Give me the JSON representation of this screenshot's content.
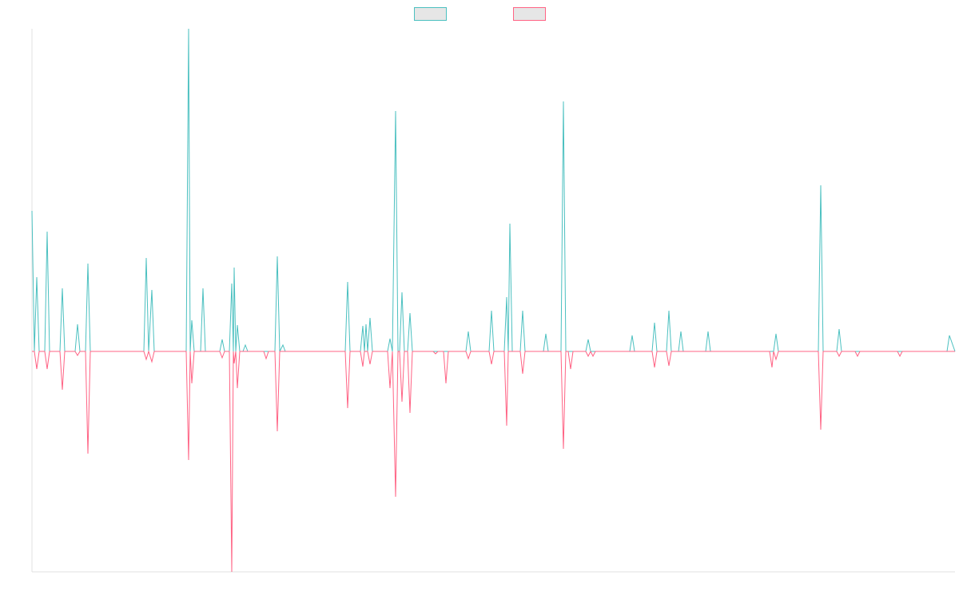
{
  "chart_data": {
    "type": "line",
    "x": [
      40,
      43,
      46,
      49,
      56,
      59,
      62,
      75,
      78,
      81,
      94,
      97,
      100,
      107,
      110,
      113,
      180,
      183,
      186,
      190,
      193,
      233,
      236,
      238,
      240,
      243,
      251,
      254,
      257,
      275,
      278,
      281,
      287,
      290,
      292,
      293,
      295,
      297,
      300,
      304,
      307,
      310,
      330,
      333,
      336,
      344,
      347,
      350,
      354,
      357,
      432,
      435,
      438,
      451,
      454,
      456,
      458,
      460,
      463,
      466,
      485,
      488,
      491,
      495,
      498,
      500,
      503,
      506,
      510,
      513,
      516,
      542,
      545,
      548,
      555,
      558,
      561,
      583,
      586,
      589,
      612,
      615,
      618,
      631,
      634,
      636,
      638,
      641,
      651,
      654,
      657,
      680,
      683,
      686,
      702,
      705,
      708,
      711,
      714,
      717,
      733,
      736,
      739,
      742,
      745,
      788,
      791,
      794,
      816,
      819,
      822,
      834,
      837,
      840,
      849,
      852,
      855,
      883,
      886,
      889,
      963,
      966,
      968,
      971,
      974,
      1024,
      1027,
      1030,
      1047,
      1050,
      1053,
      1070,
      1073,
      1076,
      1123,
      1126,
      1129,
      1185,
      1188,
      1195
    ],
    "series": [
      {
        "color": "#4bc0c0",
        "values": [
          176,
          0,
          93,
          0,
          0,
          150,
          0,
          0,
          79,
          0,
          0,
          34,
          0,
          0,
          110,
          0,
          0,
          117,
          0,
          77,
          0,
          0,
          404,
          0,
          39,
          0,
          0,
          79,
          0,
          0,
          15,
          0,
          0,
          85,
          0,
          105,
          0,
          33,
          0,
          0,
          8,
          0,
          0,
          0,
          0,
          0,
          119,
          0,
          8,
          0,
          0,
          87,
          0,
          0,
          32,
          0,
          34,
          0,
          42,
          0,
          0,
          16,
          0,
          301,
          0,
          0,
          74,
          0,
          0,
          48,
          0,
          0,
          0,
          0,
          0,
          0,
          0,
          0,
          25,
          0,
          0,
          51,
          0,
          0,
          68,
          0,
          160,
          0,
          0,
          51,
          0,
          0,
          22,
          0,
          0,
          313,
          0,
          0,
          0,
          0,
          0,
          15,
          0,
          0,
          0,
          0,
          20,
          0,
          0,
          36,
          0,
          0,
          51,
          0,
          0,
          25,
          0,
          0,
          25,
          0,
          0,
          0,
          0,
          22,
          0,
          0,
          208,
          0,
          0,
          28,
          0,
          0,
          0,
          0,
          0,
          0,
          0,
          0,
          20,
          0
        ]
      },
      {
        "color": "#ff6384",
        "values": [
          0,
          0,
          -22,
          0,
          0,
          -22,
          0,
          0,
          -48,
          0,
          0,
          -5,
          0,
          0,
          -128,
          0,
          0,
          -10,
          0,
          -13,
          0,
          0,
          -136,
          0,
          -40,
          0,
          0,
          0,
          0,
          0,
          -8,
          0,
          0,
          -276,
          0,
          -15,
          0,
          -46,
          0,
          0,
          0,
          0,
          0,
          -9,
          0,
          0,
          -100,
          0,
          0,
          0,
          0,
          -71,
          0,
          0,
          -19,
          0,
          0,
          0,
          -16,
          0,
          0,
          -46,
          0,
          -182,
          0,
          0,
          -63,
          0,
          0,
          -77,
          0,
          0,
          -3,
          0,
          0,
          -40,
          0,
          0,
          -9,
          0,
          0,
          -16,
          0,
          0,
          -93,
          0,
          0,
          0,
          0,
          -28,
          0,
          0,
          0,
          0,
          0,
          -122,
          0,
          0,
          -22,
          0,
          0,
          -6,
          0,
          -6,
          0,
          0,
          0,
          0,
          0,
          -20,
          0,
          0,
          -18,
          0,
          0,
          0,
          0,
          0,
          0,
          0,
          0,
          -20,
          0,
          -10,
          0,
          0,
          -98,
          0,
          0,
          -6,
          0,
          0,
          -6,
          0,
          0,
          -6,
          0,
          0,
          0,
          0
        ]
      }
    ],
    "xlim": [
      40,
      1195
    ],
    "ylim": [
      -276,
      404
    ],
    "legend": "top"
  }
}
